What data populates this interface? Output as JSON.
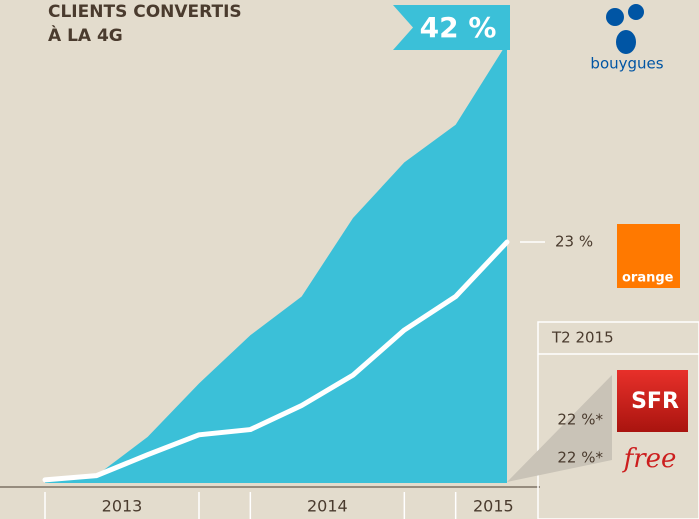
{
  "chart_data": {
    "type": "area",
    "title_lines": [
      "CLIENTS CONVERTIS",
      "À LA 4G"
    ],
    "categories": [
      null,
      null,
      null,
      null,
      null,
      null,
      null,
      null,
      null,
      null
    ],
    "years": [
      "2013",
      "2014",
      "2015"
    ],
    "ylim": [
      0,
      42
    ],
    "series": [
      {
        "name": "bouygues",
        "type": "area",
        "color": "#3bc0d8",
        "values": [
          0.3,
          0.7,
          4.4,
          9.5,
          14.1,
          17.8,
          25.3,
          30.6,
          34.2,
          42
        ],
        "value_labels": [
          null,
          null,
          null,
          null,
          null,
          null,
          null,
          null,
          null,
          "42 %"
        ]
      },
      {
        "name": "orange",
        "type": "line",
        "color": "#ffffff",
        "values": [
          0.3,
          0.7,
          2.7,
          4.6,
          5.1,
          7.4,
          10.3,
          14.6,
          17.8,
          23
        ],
        "value_labels": [
          null,
          null,
          null,
          null,
          null,
          null,
          null,
          null,
          null,
          "23 %"
        ]
      }
    ],
    "others": {
      "title": "T2 2015",
      "items": [
        {
          "name": "SFR",
          "value": 22,
          "label": "22 %*"
        },
        {
          "name": "free",
          "value": 22,
          "label": "22 %*"
        }
      ]
    }
  }
}
